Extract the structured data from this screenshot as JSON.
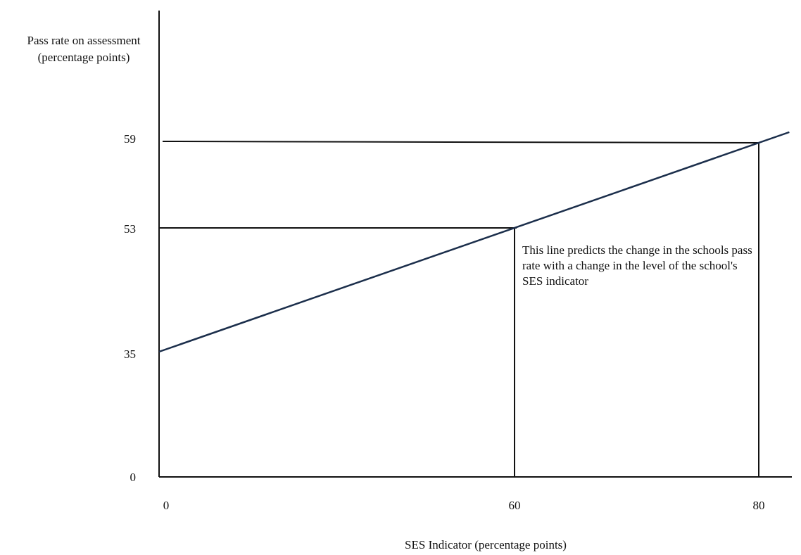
{
  "chart_data": {
    "type": "line",
    "title": "",
    "xlabel": "SES Indicator (percentage points)",
    "ylabel_lines": [
      "Pass rate on assessment",
      "(percentage points)"
    ],
    "x_ticks": [
      "0",
      "60",
      "80"
    ],
    "y_ticks": [
      "0",
      "35",
      "53",
      "59"
    ],
    "series": [
      {
        "x": [
          0,
          60,
          80
        ],
        "y": [
          35,
          53,
          59
        ]
      }
    ],
    "reference_points": [
      {
        "x": 60,
        "y": 53
      },
      {
        "x": 80,
        "y": 59
      }
    ],
    "xlim": [
      0,
      82
    ],
    "ylim": [
      0,
      60
    ],
    "grid": false,
    "annotation": "This line predicts the change in the schools pass rate with a change in the level of the school's SES indicator",
    "colors": {
      "trend_line": "#1b2e4b",
      "axes": "#111111"
    }
  }
}
